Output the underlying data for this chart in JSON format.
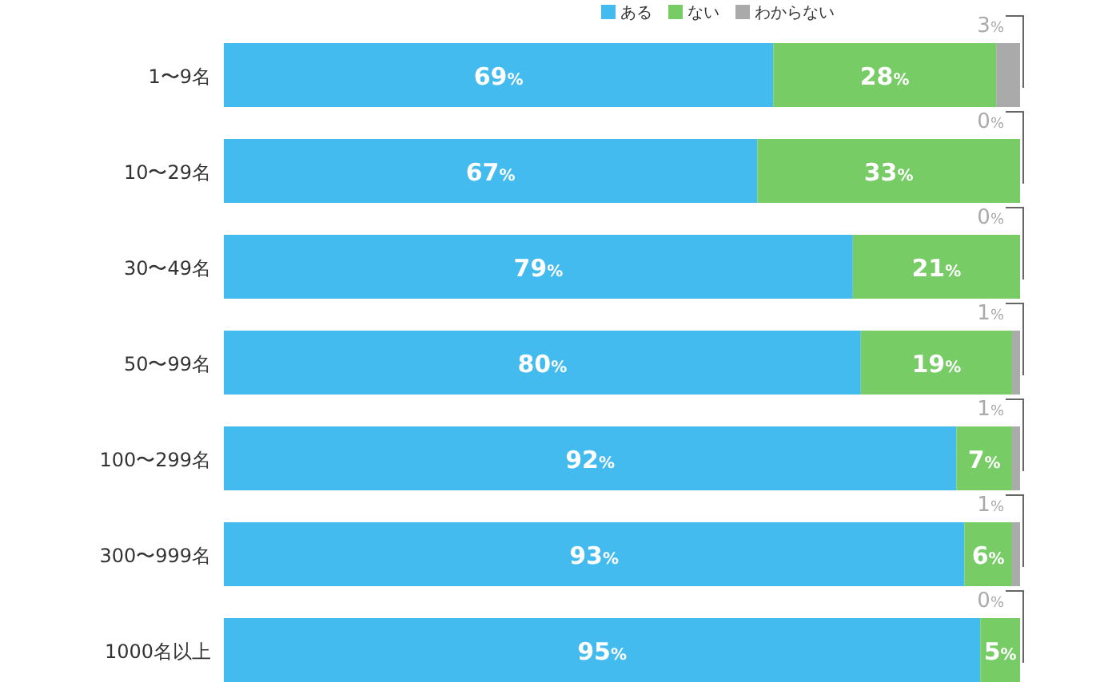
{
  "chart_data": {
    "type": "bar",
    "orientation": "horizontal",
    "stacked": true,
    "legend": "top",
    "xlim": [
      0,
      100
    ],
    "tick_labels": "y",
    "categories": [
      "1〜9名",
      "10〜29名",
      "30〜49名",
      "50〜99名",
      "100〜299名",
      "300〜999名",
      "1000名以上"
    ],
    "series": [
      {
        "name": "ある",
        "color": "#44bbee",
        "values": [
          69,
          67,
          79,
          80,
          92,
          93,
          95
        ],
        "value_labels": [
          "69%",
          "67%",
          "79%",
          "80%",
          "92%",
          "93%",
          "95%"
        ]
      },
      {
        "name": "ない",
        "color": "#77cc66",
        "values": [
          28,
          33,
          21,
          19,
          7,
          6,
          5
        ],
        "value_labels": [
          "28%",
          "33%",
          "21%",
          "19%",
          "7%",
          "6%",
          "5%"
        ]
      },
      {
        "name": "わからない",
        "color": "#aaaaaa",
        "values": [
          3,
          0,
          0,
          1,
          1,
          1,
          0
        ],
        "value_labels": [
          "3%",
          "0%",
          "0%",
          "1%",
          "1%",
          "1%",
          "0%"
        ]
      }
    ]
  }
}
